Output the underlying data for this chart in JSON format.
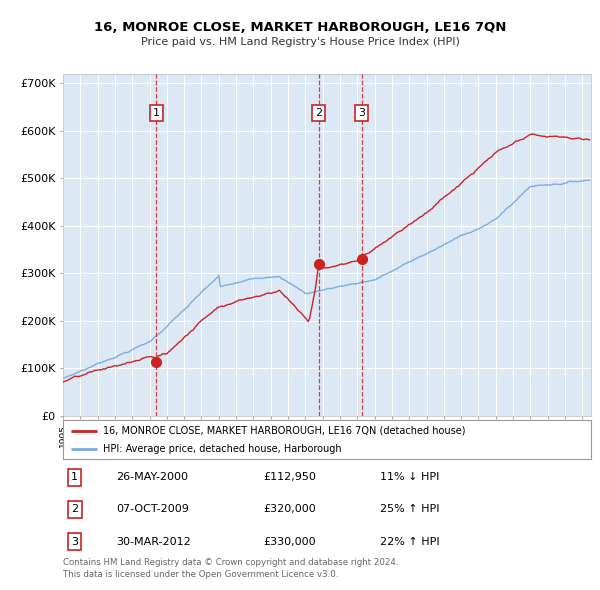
{
  "title_line1": "16, MONROE CLOSE, MARKET HARBOROUGH, LE16 7QN",
  "title_line2": "Price paid vs. HM Land Registry's House Price Index (HPI)",
  "plot_bg_color": "#dce9f5",
  "red_color": "#cc2222",
  "blue_color": "#7aade0",
  "yticks": [
    0,
    100000,
    200000,
    300000,
    400000,
    500000,
    600000,
    700000
  ],
  "ytick_labels": [
    "£0",
    "£100K",
    "£200K",
    "£300K",
    "£400K",
    "£500K",
    "£600K",
    "£700K"
  ],
  "xmin": 1995.0,
  "xmax": 2025.5,
  "ymin": 0,
  "ymax": 720000,
  "sale_dates": [
    2000.38,
    2009.77,
    2012.25
  ],
  "sale_prices": [
    112950,
    320000,
    330000
  ],
  "sale_labels": [
    "1",
    "2",
    "3"
  ],
  "legend_line1": "16, MONROE CLOSE, MARKET HARBOROUGH, LE16 7QN (detached house)",
  "legend_line2": "HPI: Average price, detached house, Harborough",
  "table_entries": [
    {
      "num": "1",
      "date": "26-MAY-2000",
      "price": "£112,950",
      "pct": "11% ↓ HPI"
    },
    {
      "num": "2",
      "date": "07-OCT-2009",
      "price": "£320,000",
      "pct": "25% ↑ HPI"
    },
    {
      "num": "3",
      "date": "30-MAR-2012",
      "price": "£330,000",
      "pct": "22% ↑ HPI"
    }
  ],
  "footer": "Contains HM Land Registry data © Crown copyright and database right 2024.\nThis data is licensed under the Open Government Licence v3.0."
}
